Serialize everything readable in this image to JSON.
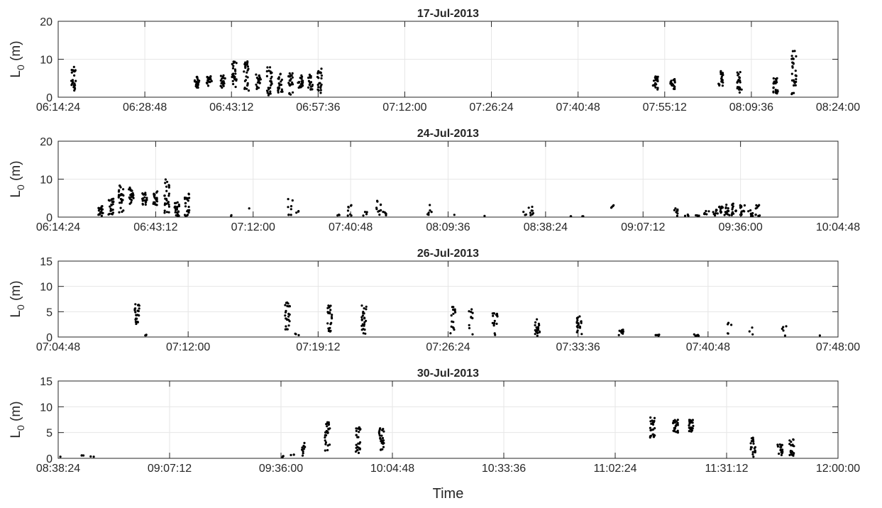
{
  "figure": {
    "xlabel": "Time"
  },
  "style": {
    "background": "#ffffff",
    "axis_color": "#262626",
    "grid_color": "#e6e6e6",
    "marker_color": "#000000"
  },
  "chart_data": [
    {
      "type": "scatter",
      "title": "17-Jul-2013",
      "ylabel": "L_0 (m)",
      "xlim": [
        "06:14:24",
        "08:24:00"
      ],
      "ylim": [
        0,
        20
      ],
      "xticks": [
        "06:14:24",
        "06:28:48",
        "06:43:12",
        "06:57:36",
        "07:12:00",
        "07:26:24",
        "07:40:48",
        "07:55:12",
        "08:09:36",
        "08:24:00"
      ],
      "yticks": [
        0,
        10,
        20
      ],
      "grid": true,
      "clusters": [
        {
          "t": "06:16:55",
          "y": [
            1,
            8
          ],
          "n": 24
        },
        {
          "t": "06:37:30",
          "y": [
            2.5,
            5.5
          ],
          "n": 20
        },
        {
          "t": "06:39:30",
          "y": [
            3,
            5.5
          ],
          "n": 20
        },
        {
          "t": "06:41:45",
          "y": [
            2.5,
            6
          ],
          "n": 20
        },
        {
          "t": "06:43:40",
          "y": [
            2.5,
            9.5
          ],
          "n": 24
        },
        {
          "t": "06:45:40",
          "y": [
            1.5,
            9.5
          ],
          "n": 26
        },
        {
          "t": "06:47:40",
          "y": [
            2,
            6
          ],
          "n": 20
        },
        {
          "t": "06:49:30",
          "y": [
            0.5,
            8
          ],
          "n": 26
        },
        {
          "t": "06:51:20",
          "y": [
            1,
            6.5
          ],
          "n": 22
        },
        {
          "t": "06:53:00",
          "y": [
            0.5,
            6.5
          ],
          "n": 24
        },
        {
          "t": "06:54:40",
          "y": [
            2.5,
            6
          ],
          "n": 20
        },
        {
          "t": "06:56:20",
          "y": [
            2,
            6
          ],
          "n": 20
        },
        {
          "t": "06:57:50",
          "y": [
            1,
            7.5
          ],
          "n": 24
        },
        {
          "t": "07:53:40",
          "y": [
            2,
            5.5
          ],
          "n": 20
        },
        {
          "t": "07:56:30",
          "y": [
            2,
            5
          ],
          "n": 20
        },
        {
          "t": "08:04:30",
          "y": [
            3,
            7
          ],
          "n": 20
        },
        {
          "t": "08:07:40",
          "y": [
            1,
            7
          ],
          "n": 22
        },
        {
          "t": "08:13:40",
          "y": [
            1,
            5.5
          ],
          "n": 22
        },
        {
          "t": "08:16:40",
          "y": [
            0.5,
            13.5
          ],
          "n": 28
        }
      ]
    },
    {
      "type": "scatter",
      "title": "24-Jul-2013",
      "ylabel": "L_0 (m)",
      "xlim": [
        "06:14:24",
        "10:04:48"
      ],
      "ylim": [
        0,
        20
      ],
      "xticks": [
        "06:14:24",
        "06:43:12",
        "07:12:00",
        "07:40:48",
        "08:09:36",
        "08:38:24",
        "09:07:12",
        "09:36:00",
        "10:04:48"
      ],
      "yticks": [
        0,
        10,
        20
      ],
      "grid": true,
      "clusters": [
        {
          "t": "06:27:00",
          "y": [
            0.3,
            3
          ],
          "n": 20
        },
        {
          "t": "06:30:00",
          "y": [
            0.5,
            5
          ],
          "n": 22
        },
        {
          "t": "06:33:00",
          "y": [
            1,
            8.5
          ],
          "n": 26
        },
        {
          "t": "06:36:00",
          "y": [
            3.5,
            8
          ],
          "n": 22
        },
        {
          "t": "06:40:00",
          "y": [
            3,
            6.5
          ],
          "n": 20
        },
        {
          "t": "06:43:00",
          "y": [
            3,
            7
          ],
          "n": 20
        },
        {
          "t": "06:46:30",
          "y": [
            0.5,
            10.3
          ],
          "n": 26
        },
        {
          "t": "06:49:30",
          "y": [
            0.3,
            4
          ],
          "n": 22
        },
        {
          "t": "06:52:30",
          "y": [
            0.2,
            6.5
          ],
          "n": 22
        },
        {
          "t": "07:05:00",
          "y": [
            0.2,
            0.6
          ],
          "n": 2
        },
        {
          "t": "07:11:30",
          "y": [
            2.3,
            2.3
          ],
          "n": 1
        },
        {
          "t": "07:23:00",
          "y": [
            0.5,
            5
          ],
          "n": 8
        },
        {
          "t": "07:25:30",
          "y": [
            1,
            2
          ],
          "n": 3
        },
        {
          "t": "07:37:30",
          "y": [
            0.3,
            1
          ],
          "n": 3
        },
        {
          "t": "07:40:30",
          "y": [
            0.3,
            3.2
          ],
          "n": 8
        },
        {
          "t": "07:45:00",
          "y": [
            0.2,
            1.5
          ],
          "n": 4
        },
        {
          "t": "07:49:00",
          "y": [
            0.3,
            4.3
          ],
          "n": 10
        },
        {
          "t": "07:51:00",
          "y": [
            0.3,
            2
          ],
          "n": 5
        },
        {
          "t": "08:04:00",
          "y": [
            0.3,
            3.3
          ],
          "n": 6
        },
        {
          "t": "08:12:00",
          "y": [
            0.6,
            0.6
          ],
          "n": 1
        },
        {
          "t": "08:21:00",
          "y": [
            0.3,
            0.3
          ],
          "n": 1
        },
        {
          "t": "08:32:00",
          "y": [
            0.5,
            1.5
          ],
          "n": 3
        },
        {
          "t": "08:34:00",
          "y": [
            0.5,
            3.7
          ],
          "n": 8
        },
        {
          "t": "08:45:30",
          "y": [
            0.2,
            0.2
          ],
          "n": 2
        },
        {
          "t": "08:49:00",
          "y": [
            0.2,
            0.2
          ],
          "n": 2
        },
        {
          "t": "08:58:00",
          "y": [
            1.7,
            3.3
          ],
          "n": 4
        },
        {
          "t": "09:17:00",
          "y": [
            0.3,
            2.5
          ],
          "n": 8
        },
        {
          "t": "09:20:00",
          "y": [
            0.2,
            0.8
          ],
          "n": 4
        },
        {
          "t": "09:23:00",
          "y": [
            0.2,
            0.5
          ],
          "n": 4
        },
        {
          "t": "09:26:00",
          "y": [
            0.3,
            2
          ],
          "n": 6
        },
        {
          "t": "09:28:30",
          "y": [
            0.3,
            2.3
          ],
          "n": 8
        },
        {
          "t": "09:30:00",
          "y": [
            0.5,
            3
          ],
          "n": 12
        },
        {
          "t": "09:32:00",
          "y": [
            0.5,
            3.5
          ],
          "n": 14
        },
        {
          "t": "09:34:00",
          "y": [
            0.5,
            4
          ],
          "n": 14
        },
        {
          "t": "09:36:30",
          "y": [
            0.3,
            3.5
          ],
          "n": 14
        },
        {
          "t": "09:39:00",
          "y": [
            0.2,
            2
          ],
          "n": 8
        },
        {
          "t": "09:41:00",
          "y": [
            0.2,
            3.2
          ],
          "n": 10
        }
      ]
    },
    {
      "type": "scatter",
      "title": "26-Jul-2013",
      "ylabel": "L_0 (m)",
      "xlim": [
        "07:04:48",
        "07:48:00"
      ],
      "ylim": [
        0,
        15
      ],
      "xticks": [
        "07:04:48",
        "07:12:00",
        "07:19:12",
        "07:26:24",
        "07:33:36",
        "07:40:48",
        "07:48:00"
      ],
      "yticks": [
        0,
        5,
        10,
        15
      ],
      "grid": true,
      "clusters": [
        {
          "t": "07:09:10",
          "y": [
            2.5,
            6.5
          ],
          "n": 24
        },
        {
          "t": "07:09:35",
          "y": [
            0.3,
            0.7
          ],
          "n": 3
        },
        {
          "t": "07:17:30",
          "y": [
            1.5,
            7
          ],
          "n": 24
        },
        {
          "t": "07:18:00",
          "y": [
            0.3,
            1
          ],
          "n": 3
        },
        {
          "t": "07:19:50",
          "y": [
            1,
            6.5
          ],
          "n": 22
        },
        {
          "t": "07:21:45",
          "y": [
            0.5,
            6.3
          ],
          "n": 24
        },
        {
          "t": "07:26:40",
          "y": [
            0.2,
            6.3
          ],
          "n": 16
        },
        {
          "t": "07:27:40",
          "y": [
            0.2,
            6.7
          ],
          "n": 10
        },
        {
          "t": "07:29:00",
          "y": [
            0.2,
            5.3
          ],
          "n": 18
        },
        {
          "t": "07:31:20",
          "y": [
            0.2,
            3.5
          ],
          "n": 20
        },
        {
          "t": "07:33:40",
          "y": [
            0.2,
            4.3
          ],
          "n": 20
        },
        {
          "t": "07:36:00",
          "y": [
            0.2,
            1.5
          ],
          "n": 10
        },
        {
          "t": "07:38:00",
          "y": [
            0.2,
            0.5
          ],
          "n": 6
        },
        {
          "t": "07:40:10",
          "y": [
            0.2,
            0.7
          ],
          "n": 8
        },
        {
          "t": "07:42:00",
          "y": [
            0.2,
            4.5
          ],
          "n": 5
        },
        {
          "t": "07:43:10",
          "y": [
            0.2,
            3.8
          ],
          "n": 3
        },
        {
          "t": "07:45:00",
          "y": [
            0.2,
            2.5
          ],
          "n": 5
        },
        {
          "t": "07:47:00",
          "y": [
            0.3,
            0.3
          ],
          "n": 1
        }
      ]
    },
    {
      "type": "scatter",
      "title": "30-Jul-2013",
      "ylabel": "L_0 (m)",
      "xlim": [
        "08:38:24",
        "12:00:00"
      ],
      "ylim": [
        0,
        15
      ],
      "xticks": [
        "08:38:24",
        "09:07:12",
        "09:36:00",
        "10:04:48",
        "10:33:36",
        "11:02:24",
        "11:31:12",
        "12:00:00"
      ],
      "yticks": [
        0,
        5,
        10,
        15
      ],
      "grid": true,
      "clusters": [
        {
          "t": "08:38:40",
          "y": [
            0.3,
            0.5
          ],
          "n": 1
        },
        {
          "t": "08:45:00",
          "y": [
            0.3,
            0.6
          ],
          "n": 3
        },
        {
          "t": "08:47:00",
          "y": [
            0.3,
            0.5
          ],
          "n": 2
        },
        {
          "t": "09:36:00",
          "y": [
            0.2,
            0.5
          ],
          "n": 3
        },
        {
          "t": "09:39:00",
          "y": [
            0.2,
            0.8
          ],
          "n": 3
        },
        {
          "t": "09:42:00",
          "y": [
            0.3,
            3
          ],
          "n": 10
        },
        {
          "t": "09:48:00",
          "y": [
            1.5,
            7
          ],
          "n": 30
        },
        {
          "t": "09:56:00",
          "y": [
            1,
            6
          ],
          "n": 26
        },
        {
          "t": "10:02:00",
          "y": [
            1.5,
            6
          ],
          "n": 26
        },
        {
          "t": "11:12:00",
          "y": [
            4,
            8
          ],
          "n": 26
        },
        {
          "t": "11:18:00",
          "y": [
            5,
            7.5
          ],
          "n": 24
        },
        {
          "t": "11:22:00",
          "y": [
            5,
            7.5
          ],
          "n": 24
        },
        {
          "t": "11:38:00",
          "y": [
            0.3,
            4
          ],
          "n": 22
        },
        {
          "t": "11:45:00",
          "y": [
            0.3,
            3
          ],
          "n": 18
        },
        {
          "t": "11:48:00",
          "y": [
            0.3,
            4
          ],
          "n": 22
        }
      ]
    }
  ]
}
